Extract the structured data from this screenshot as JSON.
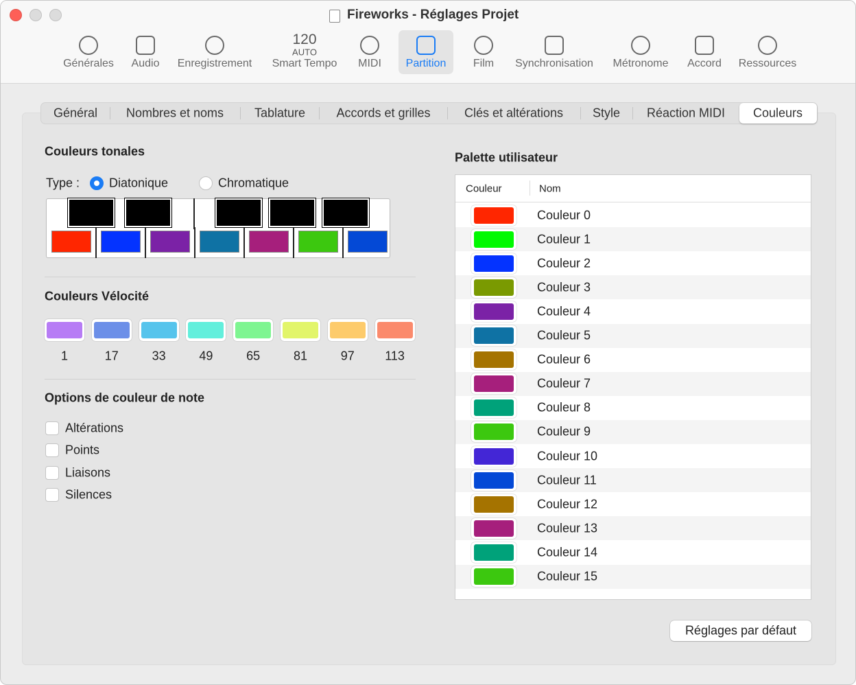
{
  "window": {
    "title": "Fireworks - Réglages Projet"
  },
  "toolbar": {
    "selected": 5,
    "tempo_number": "120",
    "tempo_mode": "AUTO",
    "items": [
      "Générales",
      "Audio",
      "Enregistrement",
      "Smart Tempo",
      "MIDI",
      "Partition",
      "Film",
      "Synchronisation",
      "Métronome",
      "Accord",
      "Ressources"
    ]
  },
  "tabs": {
    "selected": 7,
    "items": [
      "Général",
      "Nombres et noms",
      "Tablature",
      "Accords et grilles",
      "Clés et altérations",
      "Style",
      "Réaction MIDI",
      "Couleurs"
    ]
  },
  "tonal": {
    "title": "Couleurs tonales",
    "type_label": "Type :",
    "selected": 0,
    "options": [
      "Diatonique",
      "Chromatique"
    ],
    "key_colors": [
      "#ff2600",
      "#0433ff",
      "#7b22a6",
      "#0f72a4",
      "#a61f7c",
      "#3cc80f",
      "#0449d6"
    ]
  },
  "velocity": {
    "title": "Couleurs Vélocité",
    "items": [
      {
        "label": "1",
        "color": "#b77cf5"
      },
      {
        "label": "17",
        "color": "#6c8fe8"
      },
      {
        "label": "33",
        "color": "#56c4ec"
      },
      {
        "label": "49",
        "color": "#62efdc"
      },
      {
        "label": "65",
        "color": "#7ef591"
      },
      {
        "label": "81",
        "color": "#e2f56a"
      },
      {
        "label": "97",
        "color": "#fdcb6b"
      },
      {
        "label": "113",
        "color": "#fb8a6c"
      }
    ]
  },
  "note_options": {
    "title": "Options de couleur de note",
    "items": [
      "Altérations",
      "Points",
      "Liaisons",
      "Silences"
    ]
  },
  "palette": {
    "title": "Palette utilisateur",
    "headers": [
      "Couleur",
      "Nom"
    ],
    "rows": [
      {
        "color": "#ff2600",
        "name": "Couleur 0"
      },
      {
        "color": "#00f900",
        "name": "Couleur 1"
      },
      {
        "color": "#0433ff",
        "name": "Couleur 2"
      },
      {
        "color": "#7a9a01",
        "name": "Couleur 3"
      },
      {
        "color": "#7b22a6",
        "name": "Couleur 4"
      },
      {
        "color": "#0f72a4",
        "name": "Couleur 5"
      },
      {
        "color": "#a57300",
        "name": "Couleur 6"
      },
      {
        "color": "#a61f7c",
        "name": "Couleur 7"
      },
      {
        "color": "#00a27a",
        "name": "Couleur 8"
      },
      {
        "color": "#3cc80f",
        "name": "Couleur 9"
      },
      {
        "color": "#4326d6",
        "name": "Couleur 10"
      },
      {
        "color": "#0449d6",
        "name": "Couleur 11"
      },
      {
        "color": "#a57300",
        "name": "Couleur 12"
      },
      {
        "color": "#a61f7c",
        "name": "Couleur 13"
      },
      {
        "color": "#00a27a",
        "name": "Couleur 14"
      },
      {
        "color": "#3cc80f",
        "name": "Couleur 15"
      }
    ]
  },
  "button": "Réglages par défaut"
}
